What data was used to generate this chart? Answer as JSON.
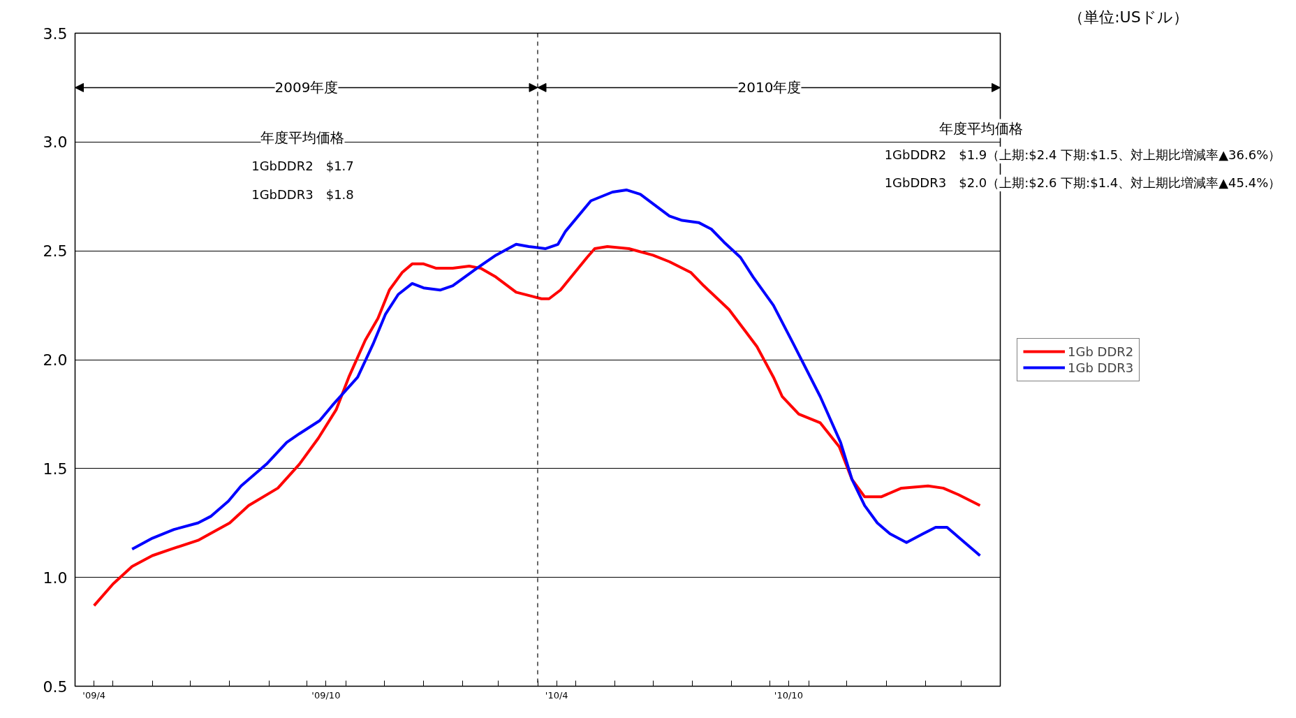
{
  "chart_data": {
    "type": "line",
    "annotations": [
      "（単位:USドル）",
      {
        "text": "2009年度",
        "x": "2010-04-01",
        "y": 3.25
      },
      {
        "text": "2010年度",
        "x": "2010-04-01",
        "y": 3.25
      },
      "年度平均価格",
      "1GbDDR2　$1.7",
      "1GbDDR3　$1.8",
      "年度平均価格",
      "1GbDDR2　$1.9（上期:$2.4 下期:$1.5、対上期比増減率▲36.6%）",
      "1GbDDR3　$2.0（上期:$2.6 下期:$1.4、対上期比増減率▲45.4%）"
    ],
    "xlim": [
      "2009-04-01",
      "2011-04-01"
    ],
    "ylim": [
      0.5,
      3.5
    ],
    "xticks": [
      {
        "value": "2009-04-01",
        "label": null
      },
      {
        "value": "2009-04-16",
        "label": "'09/4"
      },
      {
        "value": "2009-05-01",
        "label": null
      },
      {
        "value": "2009-06-01",
        "label": null
      },
      {
        "value": "2009-07-01",
        "label": null
      },
      {
        "value": "2009-08-01",
        "label": null
      },
      {
        "value": "2009-09-01",
        "label": null
      },
      {
        "value": "2009-10-01",
        "label": null
      },
      {
        "value": "2009-10-16",
        "label": "'09/10"
      },
      {
        "value": "2009-11-01",
        "label": null
      },
      {
        "value": "2009-12-01",
        "label": null
      },
      {
        "value": "2010-01-01",
        "label": null
      },
      {
        "value": "2010-02-01",
        "label": null
      },
      {
        "value": "2010-03-01",
        "label": null
      },
      {
        "value": "2010-04-01",
        "label": null
      },
      {
        "value": "2010-04-16",
        "label": "'10/4"
      },
      {
        "value": "2010-05-01",
        "label": null
      },
      {
        "value": "2010-06-01",
        "label": null
      },
      {
        "value": "2010-07-01",
        "label": null
      },
      {
        "value": "2010-08-01",
        "label": null
      },
      {
        "value": "2010-09-01",
        "label": null
      },
      {
        "value": "2010-10-01",
        "label": null
      },
      {
        "value": "2010-10-16",
        "label": "'10/10"
      },
      {
        "value": "2010-11-01",
        "label": null
      },
      {
        "value": "2010-12-01",
        "label": null
      },
      {
        "value": "2011-01-01",
        "label": null
      },
      {
        "value": "2011-02-01",
        "label": null
      },
      {
        "value": "2011-03-01",
        "label": null
      },
      {
        "value": "2011-04-01",
        "label": null
      }
    ],
    "yticks": [
      0.5,
      {
        "value": 1.0,
        "label": "1.0"
      },
      1.5,
      {
        "value": 2.0,
        "label": "2.0"
      },
      2.5,
      {
        "value": 3.0,
        "label": "3.0"
      },
      3.5
    ],
    "grid": "y",
    "legend": "right",
    "marker": "none",
    "line_style": "solid",
    "ref_lines": [
      {
        "axis": "x",
        "value": "2010-04-01",
        "label": null,
        "color": "#000000",
        "line_style": "dashed"
      }
    ],
    "series": [
      {
        "name": "1Gb DDR2",
        "color": "#ff0000",
        "x": [
          "2009-04-16",
          "2009-05-01",
          "2009-05-16",
          "2009-06-01",
          "2009-06-16",
          "2009-07-07",
          "2009-08-01",
          "2009-08-16",
          "2009-09-08",
          "2009-09-25",
          "2009-10-10",
          "2009-10-24",
          "2009-11-03",
          "2009-11-16",
          "2009-11-26",
          "2009-12-05",
          "2009-12-15",
          "2009-12-23",
          "2010-01-01",
          "2010-01-11",
          "2010-01-24",
          "2010-02-06",
          "2010-02-15",
          "2010-02-27",
          "2010-03-15",
          "2010-04-04",
          "2010-04-10",
          "2010-04-19",
          "2010-05-10",
          "2010-05-16",
          "2010-05-26",
          "2010-06-12",
          "2010-07-01",
          "2010-07-14",
          "2010-07-31",
          "2010-08-10",
          "2010-08-30",
          "2010-09-12",
          "2010-09-21",
          "2010-10-04",
          "2010-10-11",
          "2010-10-24",
          "2010-11-10",
          "2010-11-25",
          "2010-12-05",
          "2010-12-15",
          "2010-12-28",
          "2011-01-13",
          "2011-02-03",
          "2011-02-15",
          "2011-02-27",
          "2011-03-16"
        ],
        "values": [
          0.87,
          0.97,
          1.05,
          1.1,
          1.13,
          1.17,
          1.25,
          1.33,
          1.41,
          1.52,
          1.64,
          1.77,
          1.92,
          2.09,
          2.19,
          2.32,
          2.4,
          2.44,
          2.44,
          2.42,
          2.42,
          2.43,
          2.42,
          2.38,
          2.31,
          2.28,
          2.28,
          2.32,
          2.47,
          2.51,
          2.52,
          2.51,
          2.48,
          2.45,
          2.4,
          2.34,
          2.23,
          2.13,
          2.06,
          1.92,
          1.83,
          1.75,
          1.71,
          1.6,
          1.45,
          1.37,
          1.37,
          1.41,
          1.42,
          1.41,
          1.38,
          1.33
        ]
      },
      {
        "name": "1Gb DDR3",
        "color": "#0000ff",
        "x": [
          "2009-05-16",
          "2009-06-01",
          "2009-06-18",
          "2009-07-07",
          "2009-07-17",
          "2009-07-31",
          "2009-08-10",
          "2009-08-30",
          "2009-09-15",
          "2009-09-25",
          "2009-10-11",
          "2009-10-21",
          "2009-11-10",
          "2009-11-22",
          "2009-12-02",
          "2009-12-12",
          "2009-12-23",
          "2010-01-01",
          "2010-01-14",
          "2010-01-24",
          "2010-02-12",
          "2010-02-27",
          "2010-03-15",
          "2010-03-25",
          "2010-04-07",
          "2010-04-17",
          "2010-04-23",
          "2010-05-13",
          "2010-05-30",
          "2010-06-10",
          "2010-06-21",
          "2010-07-14",
          "2010-07-24",
          "2010-08-06",
          "2010-08-16",
          "2010-08-26",
          "2010-09-08",
          "2010-09-18",
          "2010-10-04",
          "2010-10-20",
          "2010-11-10",
          "2010-11-26",
          "2010-12-05",
          "2010-12-15",
          "2010-12-25",
          "2011-01-04",
          "2011-01-17",
          "2011-01-30",
          "2011-02-09",
          "2011-02-18",
          "2011-03-02",
          "2011-03-16"
        ],
        "values": [
          1.13,
          1.18,
          1.22,
          1.25,
          1.28,
          1.35,
          1.42,
          1.52,
          1.62,
          1.66,
          1.72,
          1.79,
          1.92,
          2.07,
          2.21,
          2.3,
          2.35,
          2.33,
          2.32,
          2.34,
          2.42,
          2.48,
          2.53,
          2.52,
          2.51,
          2.53,
          2.59,
          2.73,
          2.77,
          2.78,
          2.76,
          2.66,
          2.64,
          2.63,
          2.6,
          2.54,
          2.47,
          2.38,
          2.25,
          2.07,
          1.83,
          1.62,
          1.45,
          1.33,
          1.25,
          1.2,
          1.16,
          1.2,
          1.23,
          1.23,
          1.17,
          1.1
        ]
      }
    ]
  }
}
